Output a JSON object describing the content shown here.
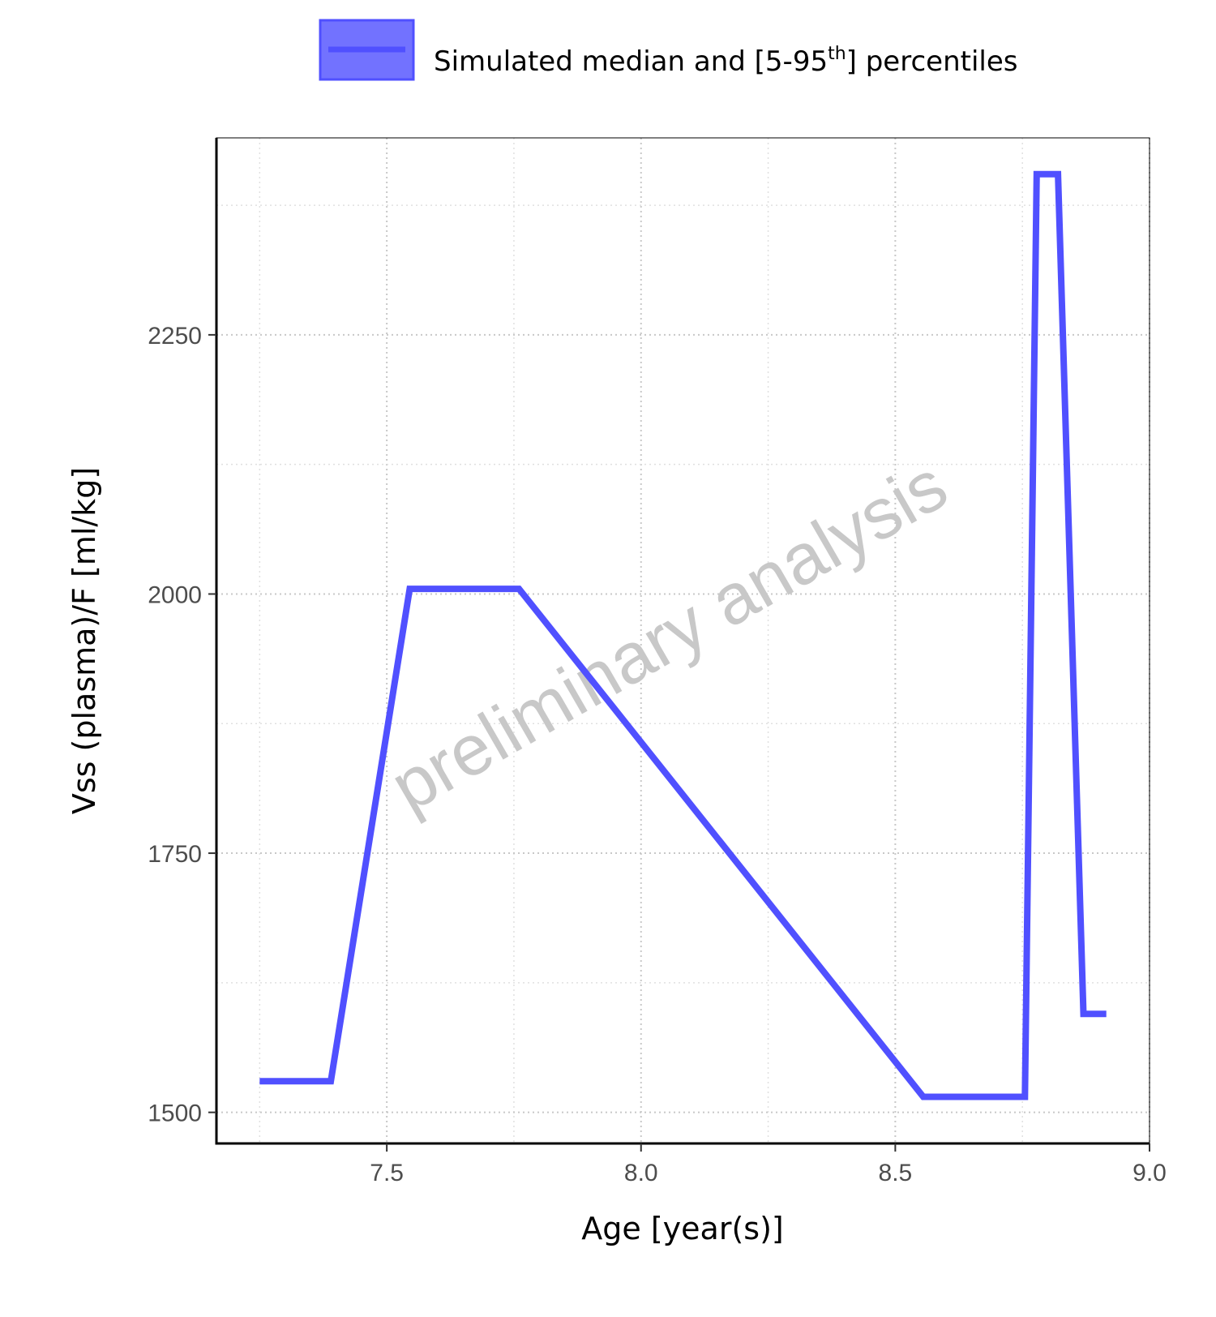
{
  "chart_data": {
    "type": "line",
    "xlabel": "Age [year(s)]",
    "ylabel": "Vss (plasma)/F [ml/kg]",
    "xlim": [
      7.165,
      9.0
    ],
    "ylim": [
      1470,
      2440
    ],
    "x_ticks": [
      7.5,
      8.0,
      8.5,
      9.0
    ],
    "x_tick_labels": [
      "7.5",
      "8.0",
      "8.5",
      "9.0"
    ],
    "y_ticks": [
      1500,
      1750,
      2000,
      2250
    ],
    "y_tick_labels": [
      "1500",
      "1750",
      "2000",
      "2250"
    ],
    "grid": true,
    "legend": {
      "placement": "top",
      "label_main": "Simulated median and [5-95",
      "label_sup": "th",
      "label_end": "] percentiles"
    },
    "watermark": "preliminary analysis",
    "colors": {
      "series": "#5050ff",
      "legend_fill": "#7272ff",
      "grid": "#d0d0d0",
      "axis": "#000000"
    },
    "series": [
      {
        "x": [
          7.25,
          7.39,
          7.545,
          7.76,
          8.555,
          8.755,
          8.778,
          8.82,
          8.87,
          8.915
        ],
        "y": [
          1530,
          1530,
          2005,
          2005,
          1515,
          1515,
          2405,
          2405,
          1595,
          1595
        ]
      }
    ]
  }
}
